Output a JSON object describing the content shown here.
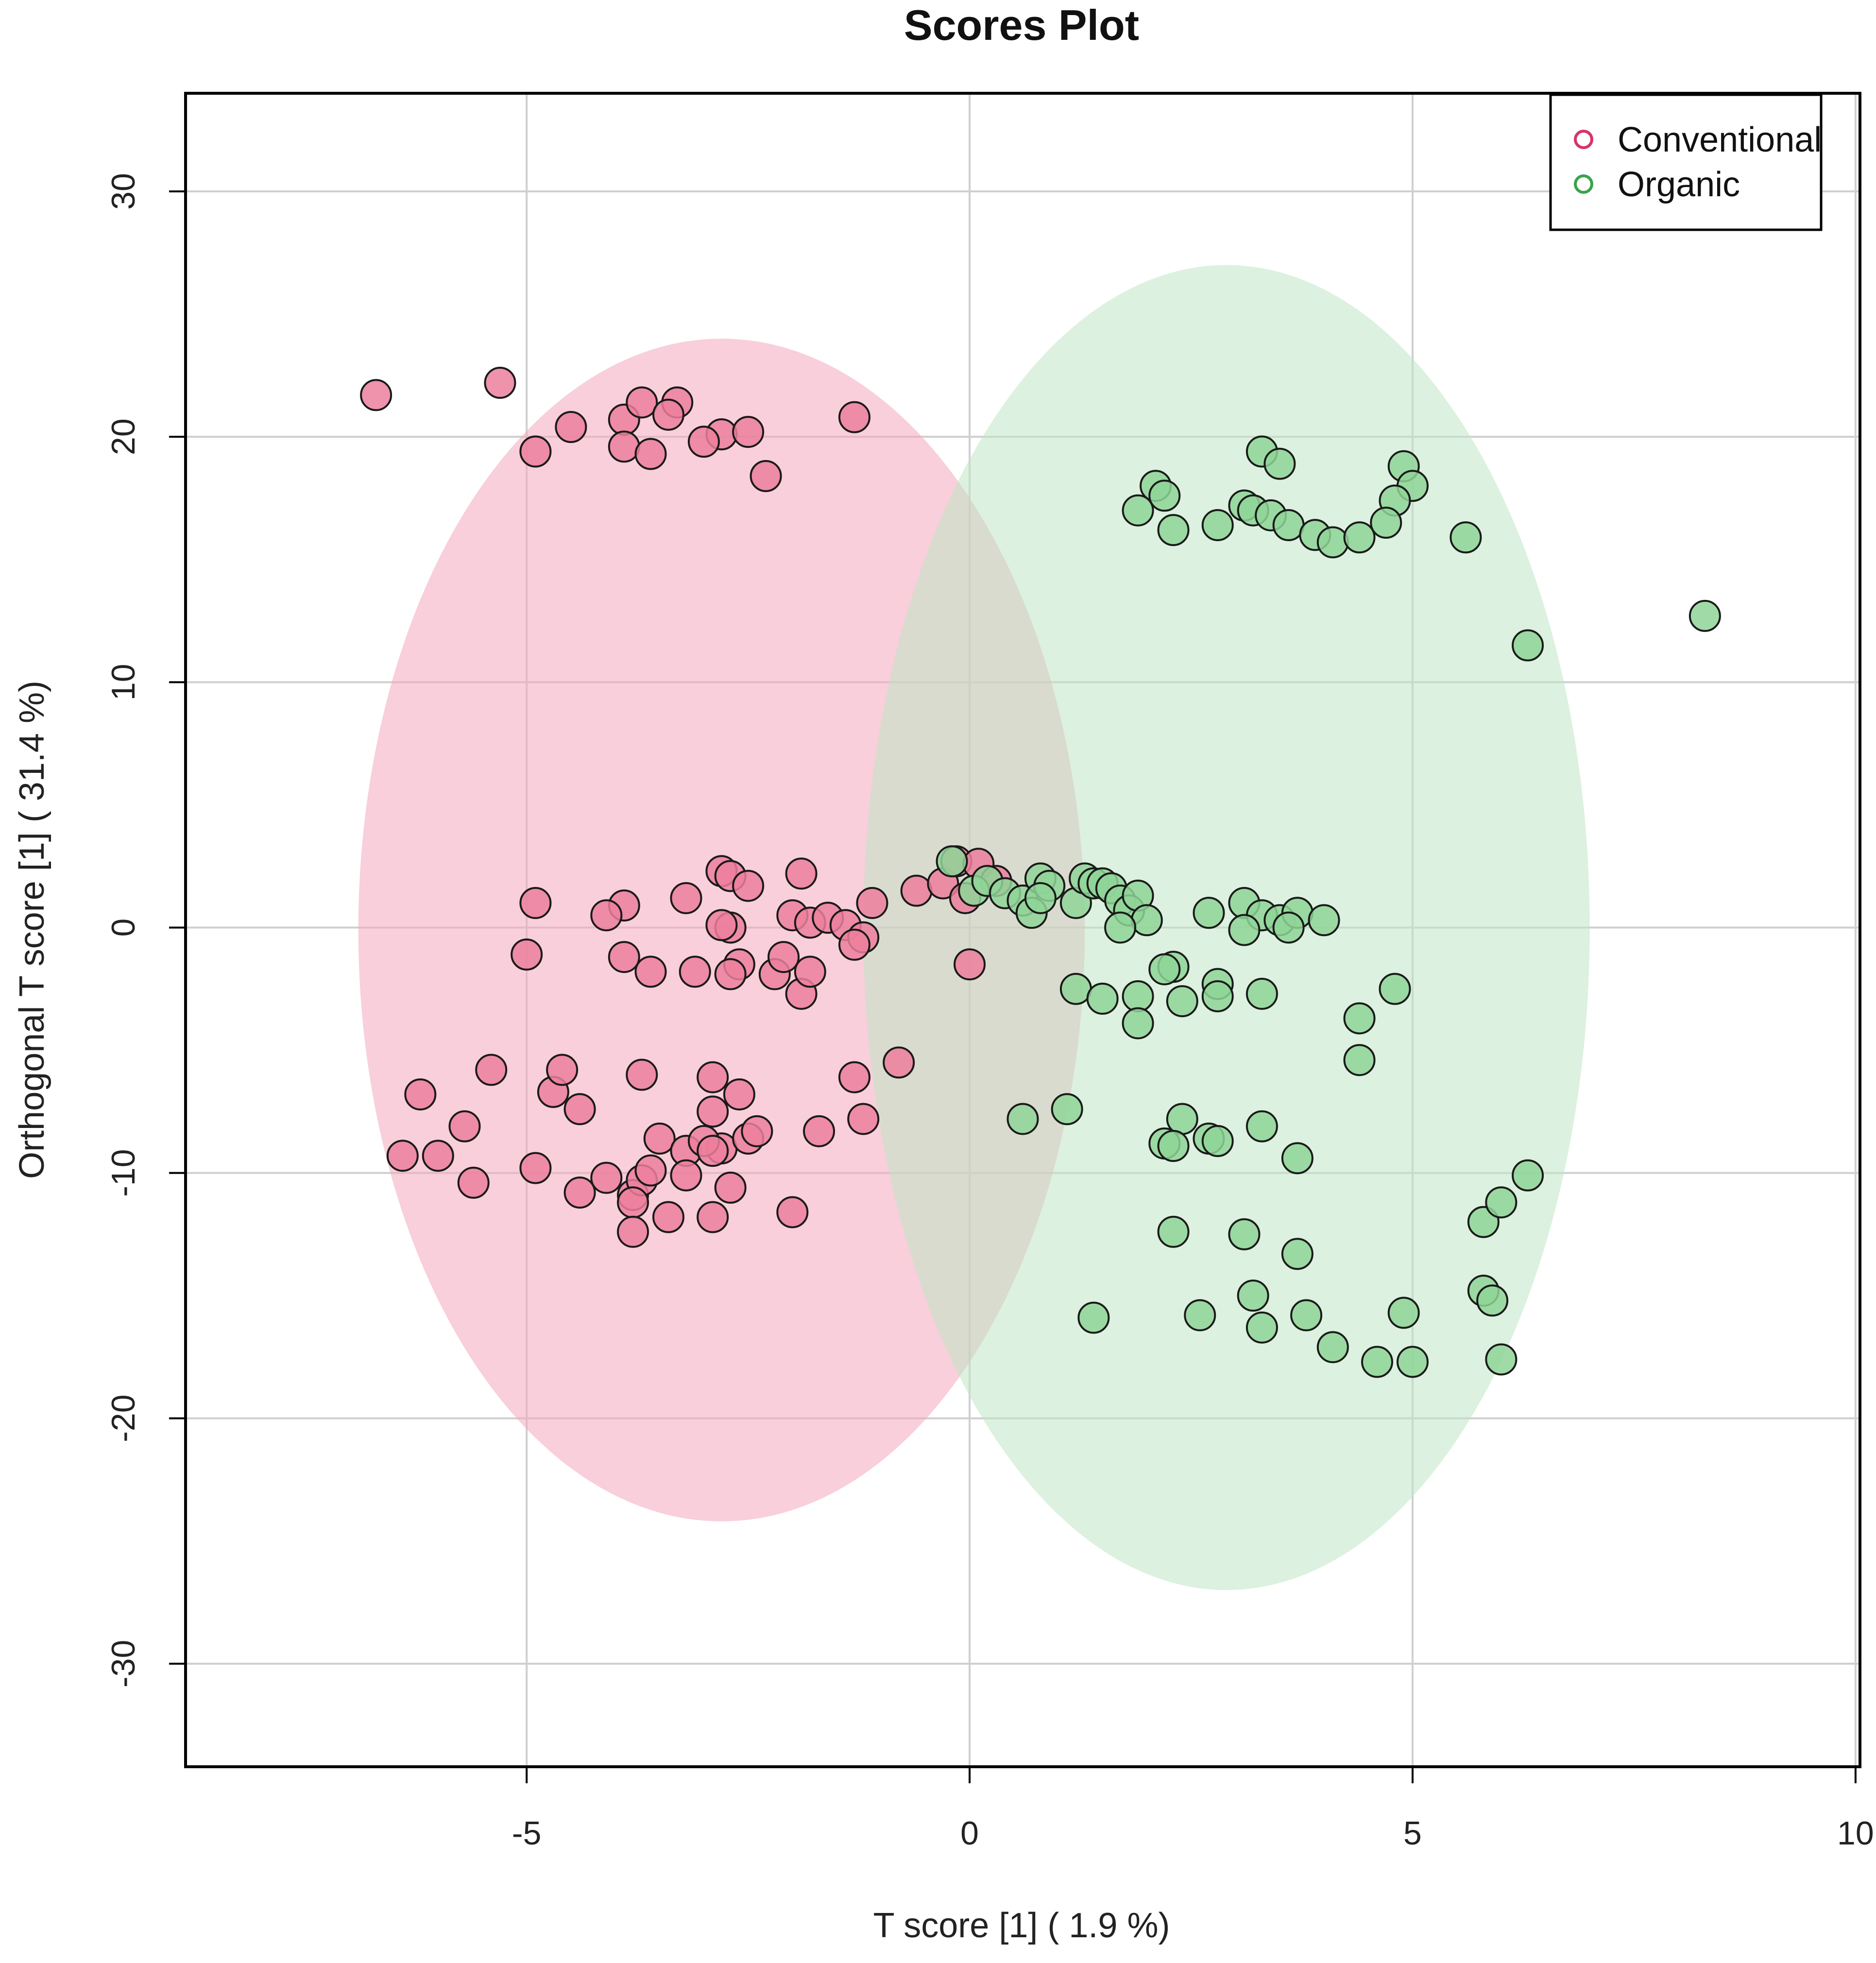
{
  "chart_data": {
    "type": "scatter",
    "title": "Scores Plot",
    "xlabel": "T score [1] ( 1.9 %)",
    "ylabel": "Orthogonal T score [1] ( 31.4 %)",
    "xlim": [
      -8.85,
      10.05
    ],
    "ylim": [
      -34.2,
      34.0
    ],
    "xticks": [
      -5,
      0,
      5,
      10
    ],
    "yticks": [
      -30,
      -20,
      -10,
      0,
      10,
      20,
      30
    ],
    "grid": true,
    "legend_position": "top-right",
    "ellipses": [
      {
        "name": "Conventional",
        "center": [
          -2.8,
          -0.1
        ],
        "half_width": 4.1,
        "half_height": 24.1,
        "color": "#f2a7bc"
      },
      {
        "name": "Organic",
        "center": [
          2.9,
          0.0
        ],
        "half_width": 4.1,
        "half_height": 27.0,
        "color": "#bfe6c4"
      }
    ],
    "series": [
      {
        "name": "Conventional",
        "color": "#ec7f9c",
        "legend_color": "#d6336c",
        "points": [
          [
            -6.7,
            21.7
          ],
          [
            -5.3,
            22.2
          ],
          [
            -4.5,
            20.4
          ],
          [
            -4.9,
            19.4
          ],
          [
            -3.9,
            20.7
          ],
          [
            -3.7,
            21.4
          ],
          [
            -3.3,
            21.4
          ],
          [
            -3.4,
            20.9
          ],
          [
            -3.9,
            19.6
          ],
          [
            -3.6,
            19.3
          ],
          [
            -2.8,
            20.1
          ],
          [
            -3.0,
            19.8
          ],
          [
            -2.5,
            20.2
          ],
          [
            -2.3,
            18.4
          ],
          [
            -1.3,
            20.8
          ],
          [
            -4.9,
            1.0
          ],
          [
            -3.9,
            0.9
          ],
          [
            -4.1,
            0.5
          ],
          [
            -3.2,
            1.2
          ],
          [
            -2.8,
            2.3
          ],
          [
            -2.7,
            2.1
          ],
          [
            -2.5,
            1.7
          ],
          [
            -1.9,
            2.2
          ],
          [
            -2.7,
            0.0
          ],
          [
            -2.8,
            0.1
          ],
          [
            -2.0,
            0.5
          ],
          [
            -1.8,
            0.2
          ],
          [
            -1.6,
            0.4
          ],
          [
            -1.4,
            0.1
          ],
          [
            -1.1,
            1.0
          ],
          [
            -1.2,
            -0.4
          ],
          [
            -1.3,
            -0.7
          ],
          [
            -5.0,
            -1.1
          ],
          [
            -3.9,
            -1.2
          ],
          [
            -3.6,
            -1.8
          ],
          [
            -3.1,
            -1.8
          ],
          [
            -2.6,
            -1.5
          ],
          [
            -2.7,
            -1.9
          ],
          [
            -2.2,
            -1.9
          ],
          [
            -2.1,
            -1.2
          ],
          [
            -1.9,
            -2.7
          ],
          [
            -1.8,
            -1.8
          ],
          [
            -0.6,
            1.5
          ],
          [
            -0.3,
            1.8
          ],
          [
            -0.15,
            2.7
          ],
          [
            0.1,
            2.6
          ],
          [
            0.0,
            -1.5
          ],
          [
            0.3,
            1.9
          ],
          [
            -0.05,
            1.2
          ],
          [
            -6.2,
            -6.8
          ],
          [
            -5.4,
            -5.8
          ],
          [
            -4.7,
            -6.7
          ],
          [
            -4.6,
            -5.8
          ],
          [
            -4.4,
            -7.4
          ],
          [
            -3.7,
            -6.0
          ],
          [
            -2.9,
            -6.1
          ],
          [
            -2.6,
            -6.8
          ],
          [
            -1.3,
            -6.1
          ],
          [
            -0.8,
            -5.5
          ],
          [
            -5.7,
            -8.1
          ],
          [
            -6.4,
            -9.3
          ],
          [
            -6.0,
            -9.3
          ],
          [
            -5.6,
            -10.4
          ],
          [
            -4.9,
            -9.8
          ],
          [
            -4.4,
            -10.8
          ],
          [
            -4.1,
            -10.2
          ],
          [
            -3.8,
            -10.9
          ],
          [
            -3.7,
            -10.3
          ],
          [
            -3.6,
            -9.9
          ],
          [
            -3.5,
            -8.6
          ],
          [
            -3.2,
            -9.1
          ],
          [
            -2.8,
            -9.0
          ],
          [
            -3.0,
            -8.7
          ],
          [
            -2.9,
            -7.5
          ],
          [
            -2.5,
            -8.6
          ],
          [
            -2.4,
            -8.3
          ],
          [
            -2.9,
            -9.1
          ],
          [
            -3.2,
            -10.1
          ],
          [
            -2.7,
            -10.6
          ],
          [
            -3.4,
            -11.8
          ],
          [
            -2.9,
            -11.8
          ],
          [
            -3.8,
            -11.2
          ],
          [
            -3.8,
            -12.4
          ],
          [
            -2.0,
            -11.6
          ],
          [
            -1.7,
            -8.3
          ],
          [
            -1.2,
            -7.8
          ]
        ]
      },
      {
        "name": "Organic",
        "color": "#8fd598",
        "legend_color": "#3aa34a",
        "points": [
          [
            3.3,
            19.4
          ],
          [
            3.5,
            18.9
          ],
          [
            4.9,
            18.8
          ],
          [
            5.0,
            18.0
          ],
          [
            4.8,
            17.4
          ],
          [
            2.1,
            18.0
          ],
          [
            2.2,
            17.6
          ],
          [
            1.9,
            17.0
          ],
          [
            2.3,
            16.2
          ],
          [
            2.8,
            16.4
          ],
          [
            3.1,
            17.2
          ],
          [
            3.2,
            17.0
          ],
          [
            3.4,
            16.8
          ],
          [
            3.6,
            16.4
          ],
          [
            3.9,
            16.0
          ],
          [
            4.1,
            15.7
          ],
          [
            4.4,
            15.9
          ],
          [
            4.7,
            16.5
          ],
          [
            5.6,
            15.9
          ],
          [
            6.3,
            11.5
          ],
          [
            8.3,
            12.7
          ],
          [
            -0.2,
            2.7
          ],
          [
            0.05,
            1.5
          ],
          [
            0.2,
            1.9
          ],
          [
            0.4,
            1.4
          ],
          [
            0.6,
            1.1
          ],
          [
            0.7,
            0.6
          ],
          [
            0.8,
            2.0
          ],
          [
            0.9,
            1.7
          ],
          [
            0.8,
            1.2
          ],
          [
            1.2,
            1.0
          ],
          [
            1.3,
            2.0
          ],
          [
            1.4,
            1.8
          ],
          [
            1.5,
            1.8
          ],
          [
            1.6,
            1.6
          ],
          [
            1.7,
            1.1
          ],
          [
            1.8,
            0.7
          ],
          [
            1.9,
            1.3
          ],
          [
            2.0,
            0.3
          ],
          [
            1.7,
            0.0
          ],
          [
            2.7,
            0.6
          ],
          [
            3.1,
            1.0
          ],
          [
            3.3,
            0.5
          ],
          [
            3.5,
            0.3
          ],
          [
            3.7,
            0.6
          ],
          [
            4.0,
            0.3
          ],
          [
            3.1,
            -0.1
          ],
          [
            3.6,
            0.0
          ],
          [
            1.2,
            -2.5
          ],
          [
            1.5,
            -2.9
          ],
          [
            1.9,
            -2.8
          ],
          [
            1.9,
            -3.9
          ],
          [
            2.3,
            -1.6
          ],
          [
            2.2,
            -1.7
          ],
          [
            2.4,
            -3.0
          ],
          [
            2.8,
            -2.3
          ],
          [
            2.8,
            -2.8
          ],
          [
            3.3,
            -2.7
          ],
          [
            4.4,
            -3.7
          ],
          [
            4.4,
            -5.4
          ],
          [
            4.8,
            -2.5
          ],
          [
            0.6,
            -7.8
          ],
          [
            1.1,
            -7.4
          ],
          [
            2.4,
            -7.8
          ],
          [
            2.2,
            -8.8
          ],
          [
            2.3,
            -8.9
          ],
          [
            2.7,
            -8.6
          ],
          [
            2.8,
            -8.7
          ],
          [
            3.3,
            -8.1
          ],
          [
            3.7,
            -9.4
          ],
          [
            2.3,
            -12.4
          ],
          [
            3.1,
            -12.5
          ],
          [
            3.7,
            -13.3
          ],
          [
            1.4,
            -15.9
          ],
          [
            2.6,
            -15.8
          ],
          [
            3.2,
            -15.0
          ],
          [
            3.3,
            -16.3
          ],
          [
            3.8,
            -15.8
          ],
          [
            4.1,
            -17.1
          ],
          [
            4.6,
            -17.7
          ],
          [
            4.9,
            -15.7
          ],
          [
            5.0,
            -17.7
          ],
          [
            5.8,
            -14.8
          ],
          [
            5.9,
            -15.2
          ],
          [
            6.0,
            -17.6
          ],
          [
            5.8,
            -12.0
          ],
          [
            6.0,
            -11.2
          ],
          [
            6.3,
            -10.1
          ]
        ]
      }
    ]
  }
}
